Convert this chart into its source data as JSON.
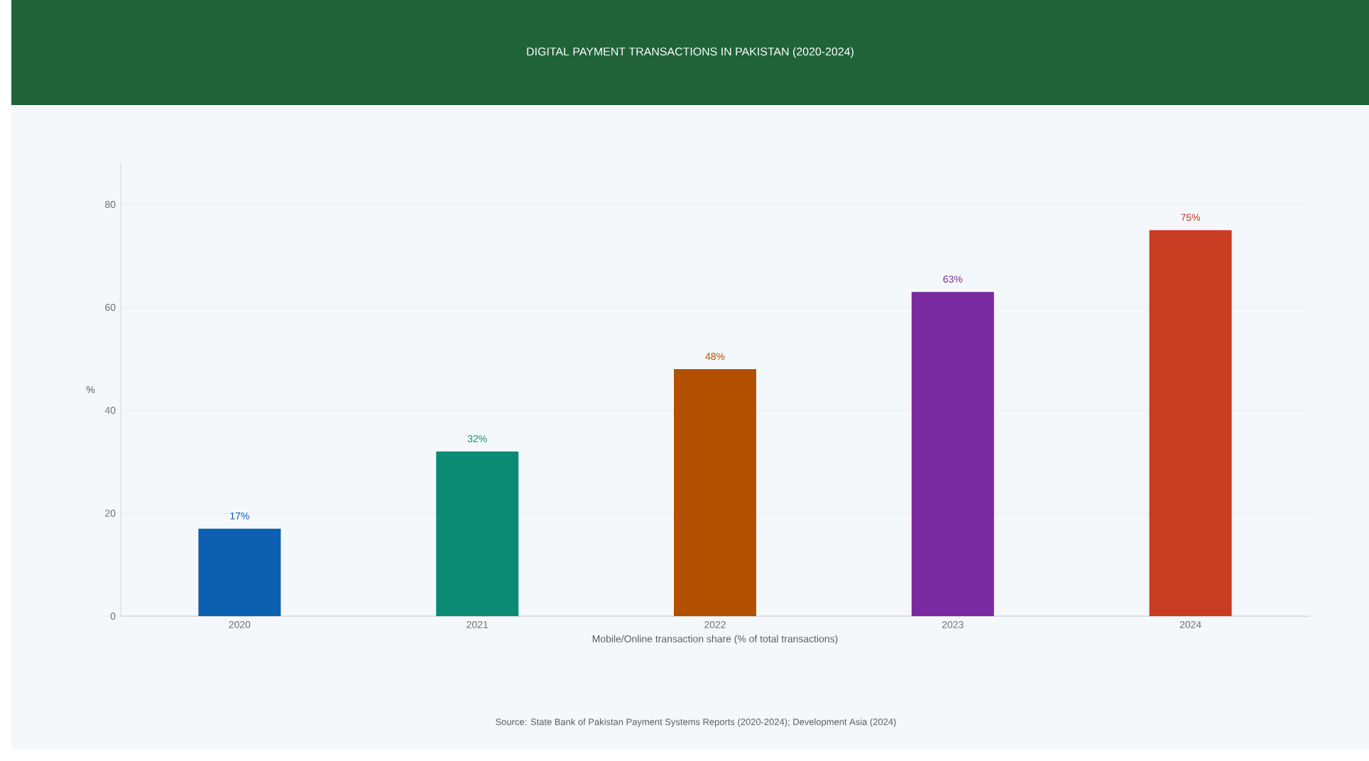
{
  "chart_data": {
    "type": "bar",
    "title": "DIGITAL PAYMENT TRANSACTIONS IN PAKISTAN (2020-2024)",
    "xlabel": "Mobile/Online transaction share (% of total transactions)",
    "ylabel": "%",
    "annotations": [
      "Source: State Bank of Pakistan Payment Systems Reports (2020-2024); Development Asia (2024)"
    ],
    "categories": [
      "2020",
      "2021",
      "2022",
      "2023",
      "2024"
    ],
    "values": [
      17,
      32,
      48,
      63,
      75
    ],
    "colors": [
      "#0d5fb0",
      "#0d8a74",
      "#b35000",
      "#7a2aa0",
      "#c83c22"
    ],
    "value_labels": [
      "17%",
      "32%",
      "48%",
      "63%",
      "75%"
    ],
    "ylim": [
      0,
      88
    ],
    "yticks": [
      0,
      20,
      40,
      60,
      80
    ],
    "grid": "y"
  }
}
